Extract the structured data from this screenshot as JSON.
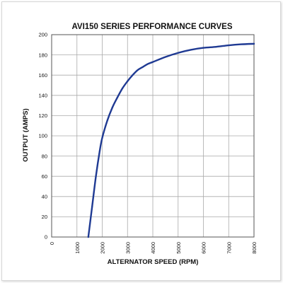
{
  "chart_data": {
    "type": "line",
    "title": "AVI150 SERIES PERFORMANCE CURVES",
    "xlabel": "ALTERNATOR SPEED (RPM)",
    "ylabel": "OUTPUT (AMPS)",
    "xlim": [
      0,
      8000
    ],
    "ylim": [
      0,
      200
    ],
    "x_ticks": [
      "0",
      "1000",
      "2000",
      "3000",
      "4000",
      "5000",
      "6000",
      "7000",
      "8000"
    ],
    "y_ticks": [
      "0",
      "20",
      "40",
      "60",
      "80",
      "100",
      "120",
      "140",
      "160",
      "180",
      "200"
    ],
    "grid": true,
    "series": [
      {
        "color": "#1f3a93",
        "x": [
          1450,
          1600,
          1750,
          1900,
          2000,
          2200,
          2400,
          2600,
          2800,
          3000,
          3200,
          3400,
          3600,
          3800,
          4000,
          4500,
          5000,
          5500,
          6000,
          6500,
          7000,
          7500,
          8000
        ],
        "y": [
          0,
          30,
          60,
          85,
          98,
          115,
          128,
          138,
          147,
          154,
          160,
          165,
          168,
          171,
          173,
          178,
          182,
          185,
          187,
          188,
          189.5,
          190.5,
          191
        ]
      }
    ]
  }
}
